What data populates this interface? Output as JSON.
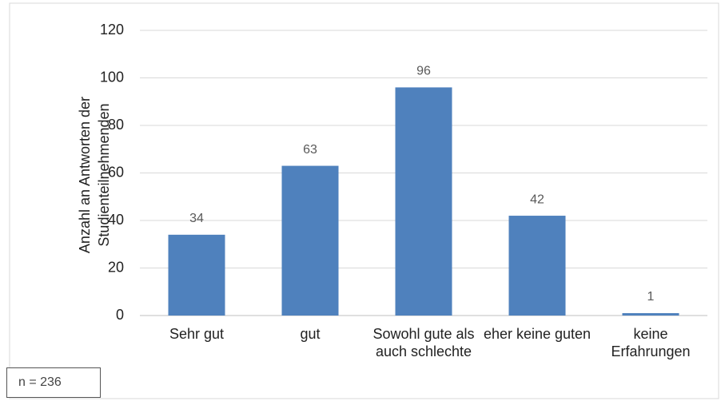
{
  "chart_data": {
    "type": "bar",
    "ylabel": "Anzahl an Antworten der Studienteilnehmenden",
    "categories": [
      "Sehr gut",
      "gut",
      "Sowohl gute als auch schlechte",
      "eher keine guten",
      "keine Erfahrungen"
    ],
    "values": [
      34,
      63,
      96,
      42,
      1
    ],
    "color": "#4f81bd",
    "ylim": [
      0,
      120
    ],
    "yticks": [
      0,
      20,
      40,
      60,
      80,
      100,
      120
    ],
    "grid": true,
    "annotation": "n = 236"
  }
}
